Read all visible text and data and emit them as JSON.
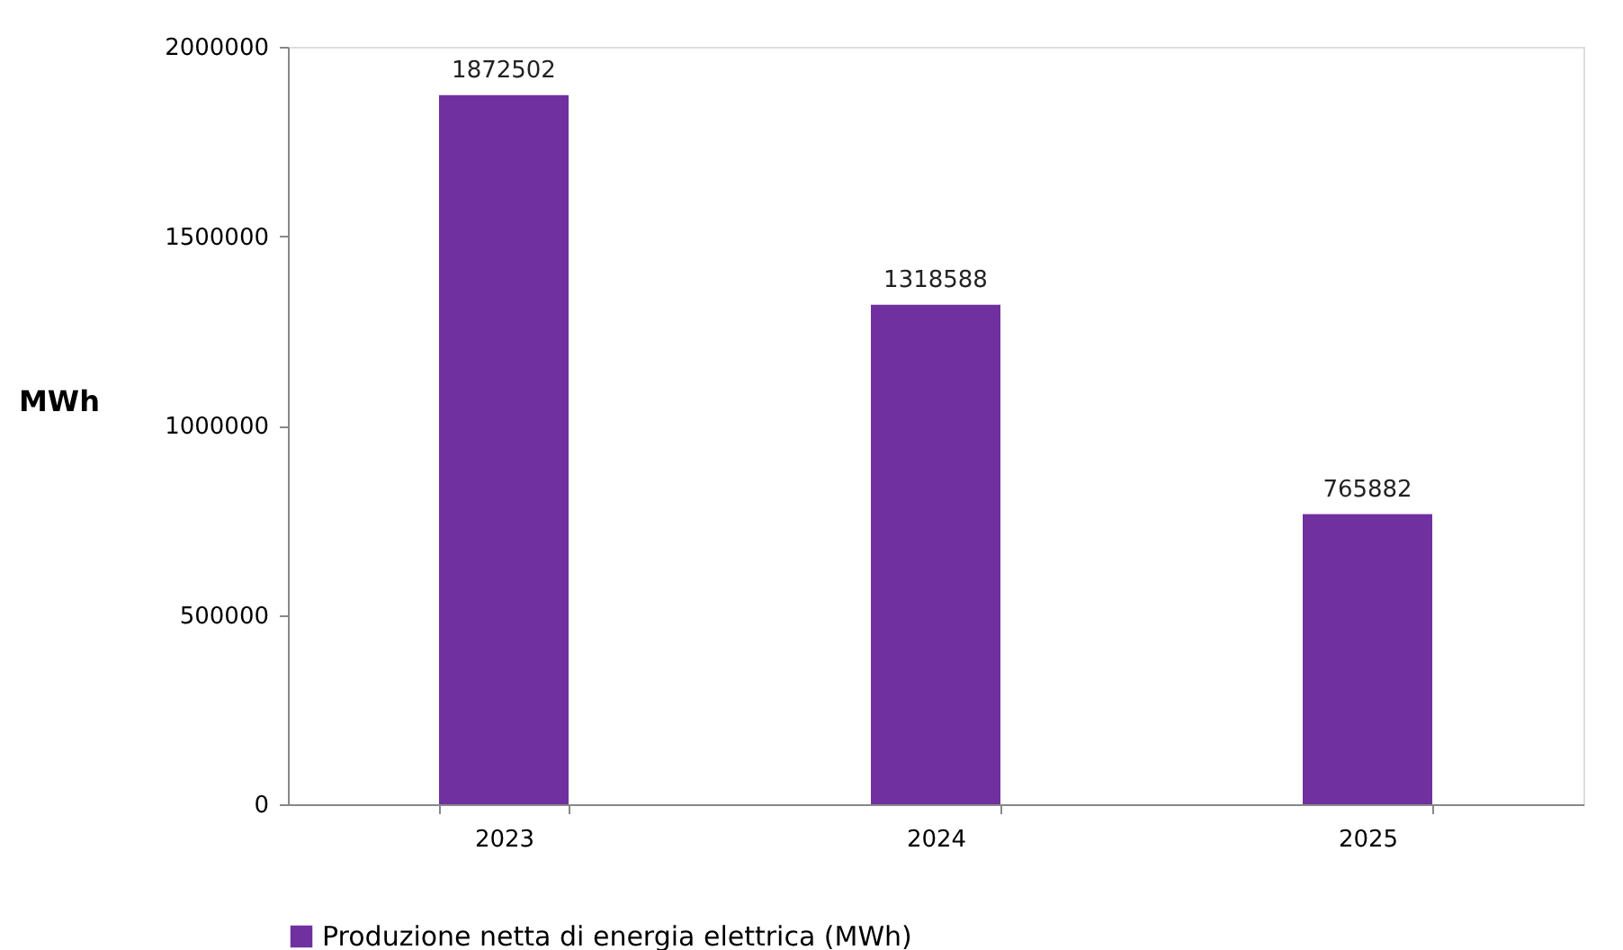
{
  "chart_data": {
    "type": "bar",
    "ylabel": "MWh",
    "categories": [
      "2023",
      "2024",
      "2025"
    ],
    "series": [
      {
        "name": "Produzione netta di energia elettrica (MWh)",
        "color": "#7030a0",
        "values": [
          1872502,
          1318588,
          765882
        ]
      }
    ],
    "ylim": [
      0,
      2000000
    ],
    "yticks": [
      0,
      500000,
      1000000,
      1500000,
      2000000
    ],
    "grid": false,
    "legend": "bottom",
    "data_labels": true
  }
}
